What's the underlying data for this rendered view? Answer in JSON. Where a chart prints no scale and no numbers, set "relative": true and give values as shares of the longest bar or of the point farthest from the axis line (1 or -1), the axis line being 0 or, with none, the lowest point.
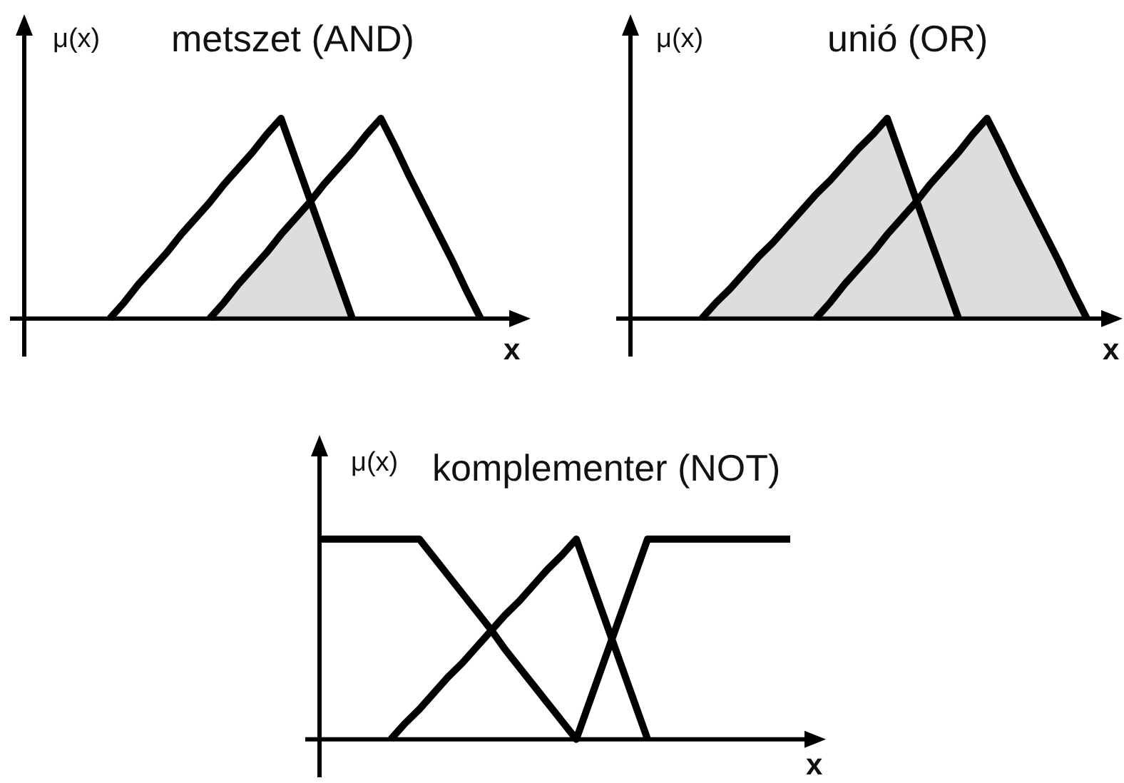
{
  "chart_data": [
    {
      "type": "line",
      "title": "metszet (AND)",
      "ylabel": "μ(x)",
      "xlabel": "x",
      "relative": true,
      "categories": [
        null,
        null,
        null,
        null,
        null,
        null,
        null,
        null,
        null,
        null,
        null,
        null,
        null,
        null,
        null,
        null,
        null,
        null,
        null,
        null,
        null,
        null,
        null,
        null,
        null,
        null,
        null,
        null,
        null,
        null,
        null,
        null,
        null,
        null,
        null,
        null
      ],
      "series": [
        {
          "type": "area",
          "color": "#dddddd",
          "values": [
            null,
            null,
            null,
            null,
            null,
            null,
            null,
            null,
            null,
            null,
            null,
            null,
            null,
            0,
            0.08,
            0.17,
            0.25,
            0.33,
            0.42,
            0.5,
            0.58,
            0.4,
            0.2,
            0,
            null,
            null,
            null,
            null,
            null,
            null,
            null,
            null,
            null,
            null,
            null,
            null
          ]
        },
        {
          "color": "#000000",
          "values": [
            null,
            null,
            null,
            null,
            null,
            null,
            0,
            0.08,
            0.17,
            0.25,
            0.33,
            0.42,
            0.5,
            0.58,
            0.67,
            0.75,
            0.83,
            0.92,
            1,
            0.8,
            0.6,
            0.4,
            0.2,
            0,
            null,
            null,
            null,
            null,
            null,
            null,
            null,
            null,
            null,
            null,
            null,
            null
          ]
        },
        {
          "color": "#000000",
          "values": [
            null,
            null,
            null,
            null,
            null,
            null,
            null,
            null,
            null,
            null,
            null,
            null,
            null,
            0,
            0.08,
            0.17,
            0.25,
            0.33,
            0.42,
            0.5,
            0.58,
            0.67,
            0.75,
            0.83,
            0.92,
            1,
            0.86,
            0.71,
            0.57,
            0.43,
            0.29,
            0.14,
            0,
            null,
            null,
            null
          ]
        }
      ]
    },
    {
      "type": "line",
      "title": "unió (OR)",
      "ylabel": "μ(x)",
      "xlabel": "x",
      "relative": true,
      "categories": [
        null,
        null,
        null,
        null,
        null,
        null,
        null,
        null,
        null,
        null,
        null,
        null,
        null,
        null,
        null,
        null,
        null,
        null,
        null,
        null,
        null,
        null,
        null,
        null,
        null,
        null,
        null,
        null,
        null,
        null,
        null,
        null,
        null,
        null,
        null
      ],
      "series": [
        {
          "type": "area",
          "color": "#dddddd",
          "values": [
            null,
            null,
            null,
            null,
            null,
            0,
            0.08,
            0.15,
            0.23,
            0.31,
            0.38,
            0.46,
            0.54,
            0.62,
            0.69,
            0.77,
            0.85,
            0.92,
            1,
            0.8,
            0.6,
            0.67,
            0.75,
            0.83,
            0.92,
            1,
            0.86,
            0.71,
            0.57,
            0.43,
            0.29,
            0.14,
            0,
            null,
            null
          ]
        },
        {
          "color": "#000000",
          "values": [
            null,
            null,
            null,
            null,
            null,
            0,
            0.08,
            0.15,
            0.23,
            0.31,
            0.38,
            0.46,
            0.54,
            0.62,
            0.69,
            0.77,
            0.85,
            0.92,
            1,
            0.8,
            0.6,
            0.4,
            0.2,
            0,
            null,
            null,
            null,
            null,
            null,
            null,
            null,
            null,
            null,
            null,
            null
          ]
        },
        {
          "color": "#000000",
          "values": [
            null,
            null,
            null,
            null,
            null,
            null,
            null,
            null,
            null,
            null,
            null,
            null,
            null,
            0,
            0.08,
            0.17,
            0.25,
            0.33,
            0.42,
            0.5,
            0.58,
            0.67,
            0.75,
            0.83,
            0.92,
            1,
            0.86,
            0.71,
            0.57,
            0.43,
            0.29,
            0.14,
            0,
            null,
            null
          ]
        }
      ]
    },
    {
      "type": "line",
      "title": "komplementer (NOT)",
      "ylabel": "μ(x)",
      "xlabel": "x",
      "relative": true,
      "categories": [
        null,
        null,
        null,
        null,
        null,
        null,
        null,
        null,
        null,
        null,
        null,
        null,
        null,
        null,
        null,
        null,
        null,
        null,
        null,
        null,
        null,
        null,
        null,
        null,
        null,
        null,
        null,
        null,
        null,
        null,
        null,
        null,
        null,
        null,
        null,
        null
      ],
      "series": [
        {
          "color": "#000000",
          "values": [
            1,
            1,
            1,
            1,
            1,
            1,
            1,
            1,
            0.91,
            0.82,
            0.73,
            0.64,
            0.55,
            0.45,
            0.36,
            0.27,
            0.18,
            0.09,
            0,
            0.2,
            0.4,
            0.6,
            0.8,
            1,
            1,
            1,
            1,
            1,
            1,
            1,
            1,
            1,
            1,
            1,
            null,
            null
          ]
        },
        {
          "color": "#000000",
          "values": [
            null,
            null,
            null,
            null,
            null,
            0,
            0.08,
            0.15,
            0.23,
            0.31,
            0.38,
            0.46,
            0.54,
            0.62,
            0.69,
            0.77,
            0.85,
            0.92,
            1,
            0.8,
            0.6,
            0.4,
            0.2,
            0,
            null,
            null,
            null,
            null,
            null,
            null,
            null,
            null,
            null,
            null,
            null,
            null
          ]
        }
      ]
    }
  ]
}
